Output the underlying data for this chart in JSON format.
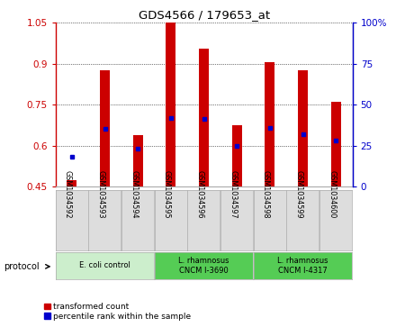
{
  "title": "GDS4566 / 179653_at",
  "samples": [
    "GSM1034592",
    "GSM1034593",
    "GSM1034594",
    "GSM1034595",
    "GSM1034596",
    "GSM1034597",
    "GSM1034598",
    "GSM1034599",
    "GSM1034600"
  ],
  "transformed_count": [
    0.472,
    0.875,
    0.638,
    1.05,
    0.955,
    0.675,
    0.905,
    0.875,
    0.76
  ],
  "percentile_rank_pct": [
    18,
    35,
    23,
    42,
    41,
    25,
    36,
    32,
    28
  ],
  "ylim_left": [
    0.45,
    1.05
  ],
  "ylim_right": [
    0,
    100
  ],
  "yticks_left": [
    0.45,
    0.6,
    0.75,
    0.9,
    1.05
  ],
  "yticks_right": [
    0,
    25,
    50,
    75,
    100
  ],
  "ytick_labels_left": [
    "0.45",
    "0.6",
    "0.75",
    "0.9",
    "1.05"
  ],
  "ytick_labels_right": [
    "0",
    "25",
    "50",
    "75",
    "100%"
  ],
  "bar_color": "#cc0000",
  "dot_color": "#0000cc",
  "protocols": [
    {
      "label": "E. coli control",
      "start": 0,
      "end": 3,
      "color": "#cceecc"
    },
    {
      "label": "L. rhamnosus\nCNCM I-3690",
      "start": 3,
      "end": 6,
      "color": "#55cc55"
    },
    {
      "label": "L. rhamnosus\nCNCM I-4317",
      "start": 6,
      "end": 9,
      "color": "#55cc55"
    }
  ],
  "legend_items": [
    {
      "label": "transformed count",
      "color": "#cc0000"
    },
    {
      "label": "percentile rank within the sample",
      "color": "#0000cc"
    }
  ],
  "sample_box_color": "#dddddd",
  "bar_width": 0.3
}
